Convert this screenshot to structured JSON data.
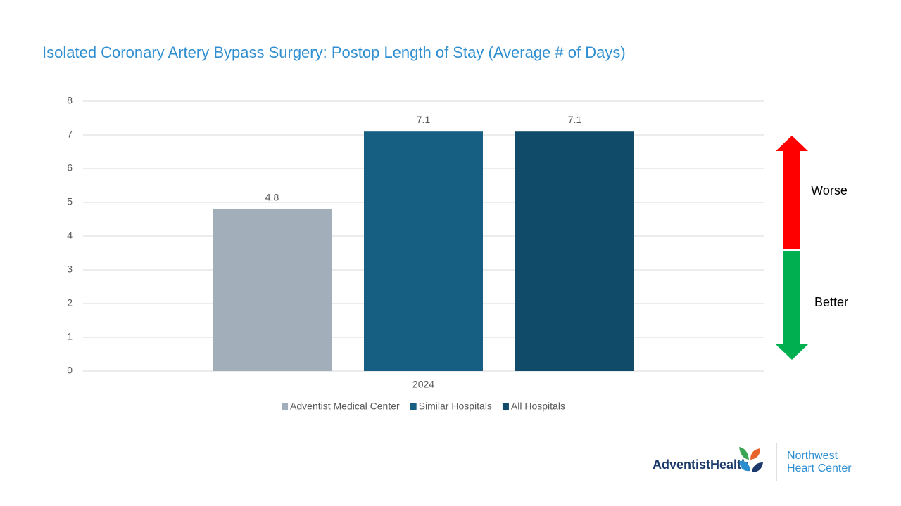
{
  "chart_data": {
    "type": "bar",
    "title": "Isolated Coronary Artery Bypass Surgery: Postop Length of Stay (Average # of Days)",
    "categories": [
      "2024"
    ],
    "series": [
      {
        "name": "Adventist Medical Center",
        "color": "#a2aeb9",
        "values": [
          4.8
        ]
      },
      {
        "name": "Similar Hospitals",
        "color": "#175f82",
        "values": [
          7.1
        ]
      },
      {
        "name": "All Hospitals",
        "color": "#104c69",
        "values": [
          7.1
        ]
      }
    ],
    "ylim": [
      0,
      8
    ],
    "yticks": [
      0,
      1,
      2,
      3,
      4,
      5,
      6,
      7,
      8
    ],
    "grid": true,
    "legend": "bottom",
    "annotations": [
      "Worse",
      "Better"
    ]
  },
  "logo": {
    "brand": "AdventistHealth",
    "unit": [
      "Northwest",
      "Heart Center"
    ]
  }
}
